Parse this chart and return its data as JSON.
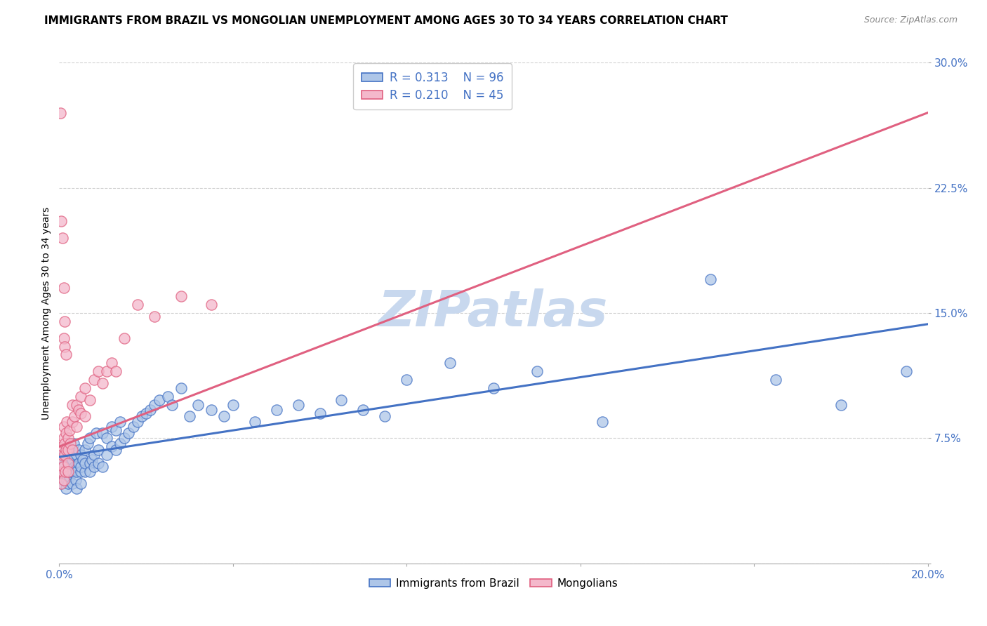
{
  "title": "IMMIGRANTS FROM BRAZIL VS MONGOLIAN UNEMPLOYMENT AMONG AGES 30 TO 34 YEARS CORRELATION CHART",
  "source": "Source: ZipAtlas.com",
  "ylabel": "Unemployment Among Ages 30 to 34 years",
  "xlim": [
    0.0,
    0.2
  ],
  "ylim": [
    0.0,
    0.3
  ],
  "xticks": [
    0.0,
    0.04,
    0.08,
    0.12,
    0.16,
    0.2
  ],
  "xticklabels": [
    "0.0%",
    "",
    "",
    "",
    "",
    "20.0%"
  ],
  "yticks": [
    0.0,
    0.075,
    0.15,
    0.225,
    0.3
  ],
  "yticklabels": [
    "",
    "7.5%",
    "15.0%",
    "22.5%",
    "30.0%"
  ],
  "watermark": "ZIPatlas",
  "legend_r1": "0.313",
  "legend_n1": "96",
  "legend_r2": "0.210",
  "legend_n2": "45",
  "color_brazil_face": "#aec6e8",
  "color_brazil_edge": "#4472c4",
  "color_mongolia_face": "#f4b8cb",
  "color_mongolia_edge": "#e06080",
  "color_brazil_line": "#4472c4",
  "color_mongolia_line": "#e06080",
  "background_color": "#ffffff",
  "grid_color": "#cccccc",
  "title_fontsize": 11,
  "label_fontsize": 10,
  "tick_fontsize": 11,
  "tick_color": "#4472c4",
  "source_fontsize": 9,
  "watermark_color": "#c8d8ee",
  "watermark_fontsize": 52,
  "brazil_x": [
    0.0005,
    0.0006,
    0.0007,
    0.0008,
    0.001,
    0.001,
    0.001,
    0.0012,
    0.0013,
    0.0015,
    0.0015,
    0.0016,
    0.0017,
    0.0018,
    0.002,
    0.002,
    0.002,
    0.002,
    0.0022,
    0.0023,
    0.0025,
    0.0025,
    0.003,
    0.003,
    0.003,
    0.003,
    0.0033,
    0.0035,
    0.0038,
    0.004,
    0.004,
    0.004,
    0.004,
    0.0045,
    0.0045,
    0.005,
    0.005,
    0.005,
    0.005,
    0.0055,
    0.006,
    0.006,
    0.006,
    0.0065,
    0.007,
    0.007,
    0.007,
    0.0075,
    0.008,
    0.008,
    0.0085,
    0.009,
    0.009,
    0.01,
    0.01,
    0.011,
    0.011,
    0.012,
    0.012,
    0.013,
    0.013,
    0.014,
    0.014,
    0.015,
    0.016,
    0.017,
    0.018,
    0.019,
    0.02,
    0.021,
    0.022,
    0.023,
    0.025,
    0.026,
    0.028,
    0.03,
    0.032,
    0.035,
    0.038,
    0.04,
    0.045,
    0.05,
    0.055,
    0.06,
    0.065,
    0.07,
    0.075,
    0.08,
    0.09,
    0.1,
    0.11,
    0.125,
    0.15,
    0.165,
    0.18,
    0.195
  ],
  "brazil_y": [
    0.055,
    0.048,
    0.052,
    0.058,
    0.05,
    0.058,
    0.065,
    0.06,
    0.055,
    0.062,
    0.068,
    0.045,
    0.055,
    0.05,
    0.062,
    0.055,
    0.048,
    0.068,
    0.058,
    0.052,
    0.06,
    0.055,
    0.055,
    0.062,
    0.048,
    0.065,
    0.072,
    0.058,
    0.05,
    0.058,
    0.065,
    0.055,
    0.045,
    0.06,
    0.068,
    0.055,
    0.065,
    0.058,
    0.048,
    0.062,
    0.055,
    0.06,
    0.068,
    0.072,
    0.06,
    0.055,
    0.075,
    0.062,
    0.065,
    0.058,
    0.078,
    0.06,
    0.068,
    0.058,
    0.078,
    0.065,
    0.075,
    0.07,
    0.082,
    0.068,
    0.08,
    0.072,
    0.085,
    0.075,
    0.078,
    0.082,
    0.085,
    0.088,
    0.09,
    0.092,
    0.095,
    0.098,
    0.1,
    0.095,
    0.105,
    0.088,
    0.095,
    0.092,
    0.088,
    0.095,
    0.085,
    0.092,
    0.095,
    0.09,
    0.098,
    0.092,
    0.088,
    0.11,
    0.12,
    0.105,
    0.115,
    0.085,
    0.17,
    0.11,
    0.095,
    0.115
  ],
  "mongolia_x": [
    0.0003,
    0.0004,
    0.0005,
    0.0006,
    0.0007,
    0.0008,
    0.0009,
    0.001,
    0.001,
    0.001,
    0.0012,
    0.0013,
    0.0014,
    0.0015,
    0.0016,
    0.0018,
    0.002,
    0.002,
    0.002,
    0.002,
    0.0023,
    0.0025,
    0.003,
    0.003,
    0.003,
    0.0035,
    0.004,
    0.004,
    0.0045,
    0.005,
    0.005,
    0.006,
    0.006,
    0.007,
    0.008,
    0.009,
    0.01,
    0.011,
    0.012,
    0.013,
    0.015,
    0.018,
    0.022,
    0.028,
    0.035
  ],
  "mongolia_y": [
    0.055,
    0.06,
    0.048,
    0.065,
    0.055,
    0.07,
    0.058,
    0.05,
    0.075,
    0.082,
    0.065,
    0.072,
    0.055,
    0.068,
    0.078,
    0.085,
    0.06,
    0.068,
    0.055,
    0.075,
    0.08,
    0.072,
    0.085,
    0.095,
    0.068,
    0.088,
    0.082,
    0.095,
    0.092,
    0.09,
    0.1,
    0.105,
    0.088,
    0.098,
    0.11,
    0.115,
    0.108,
    0.115,
    0.12,
    0.115,
    0.135,
    0.155,
    0.148,
    0.16,
    0.155
  ],
  "mongolia_outliers_x": [
    0.0003,
    0.0005,
    0.0008,
    0.001,
    0.001,
    0.0012,
    0.0013,
    0.0015
  ],
  "mongolia_outliers_y": [
    0.27,
    0.205,
    0.195,
    0.165,
    0.135,
    0.145,
    0.13,
    0.125
  ]
}
